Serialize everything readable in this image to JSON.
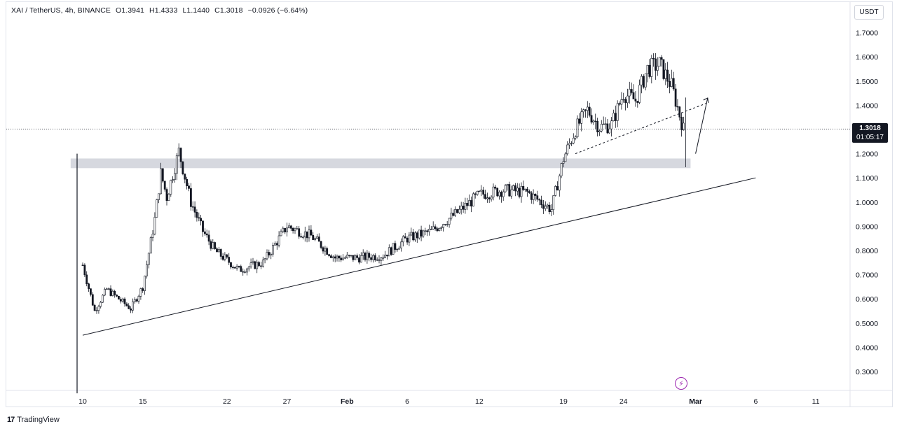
{
  "header": {
    "symbol": "XAI / TetherUS, 4h, BINANCE",
    "open": "O1.3941",
    "high": "H1.4333",
    "low": "L1.1440",
    "close": "C1.3018",
    "change": "−0.0926 (−6.64%)"
  },
  "currency_button": "USDT",
  "price_badge": {
    "price": "1.3018",
    "countdown": "01:05:17"
  },
  "footer": {
    "logo": "17",
    "brand": "TradingView"
  },
  "colors": {
    "candle": "#131722",
    "zone": "#d1d4dc",
    "text": "#131722",
    "badge_bg": "#131722",
    "flash": "#9c27b0"
  },
  "icons": {
    "flash": "lightning-icon"
  },
  "chart_data": {
    "type": "candlestick",
    "ylabel": "",
    "ylim": [
      0.2,
      1.8
    ],
    "y_ticks": [
      "1.7000",
      "1.6000",
      "1.5000",
      "1.4000",
      "1.3000",
      "1.2000",
      "1.1000",
      "1.0000",
      "0.9000",
      "0.8000",
      "0.7000",
      "0.6000",
      "0.5000",
      "0.4000",
      "0.3000"
    ],
    "x_ticks": [
      "10",
      "15",
      "22",
      "27",
      "Feb",
      "6",
      "12",
      "19",
      "24",
      "Mar",
      "6",
      "11"
    ],
    "last_price": 1.3018,
    "price_path_approx": [
      {
        "x": "Jan 10",
        "y": 0.74
      },
      {
        "x": "Jan 11",
        "y": 0.55
      },
      {
        "x": "Jan 12",
        "y": 0.64
      },
      {
        "x": "Jan 13",
        "y": 0.6
      },
      {
        "x": "Jan 14",
        "y": 0.56
      },
      {
        "x": "Jan 15",
        "y": 0.65
      },
      {
        "x": "Jan 16",
        "y": 0.93
      },
      {
        "x": "Jan 16",
        "y": 1.12
      },
      {
        "x": "Jan 17",
        "y": 1.02
      },
      {
        "x": "Jan 18",
        "y": 1.21
      },
      {
        "x": "Jan 19",
        "y": 1.0
      },
      {
        "x": "Jan 20",
        "y": 0.88
      },
      {
        "x": "Jan 21",
        "y": 0.8
      },
      {
        "x": "Jan 23",
        "y": 0.72
      },
      {
        "x": "Jan 25",
        "y": 0.75
      },
      {
        "x": "Jan 27",
        "y": 0.9
      },
      {
        "x": "Jan 29",
        "y": 0.86
      },
      {
        "x": "Jan 31",
        "y": 0.77
      },
      {
        "x": "Feb 2",
        "y": 0.77
      },
      {
        "x": "Feb 4",
        "y": 0.78
      },
      {
        "x": "Feb 6",
        "y": 0.85
      },
      {
        "x": "Feb 8",
        "y": 0.88
      },
      {
        "x": "Feb 10",
        "y": 0.95
      },
      {
        "x": "Feb 12",
        "y": 1.03
      },
      {
        "x": "Feb 14",
        "y": 1.05
      },
      {
        "x": "Feb 16",
        "y": 1.04
      },
      {
        "x": "Feb 18",
        "y": 0.97
      },
      {
        "x": "Feb 19",
        "y": 1.18
      },
      {
        "x": "Feb 20",
        "y": 1.3
      },
      {
        "x": "Feb 21",
        "y": 1.38
      },
      {
        "x": "Feb 22",
        "y": 1.31
      },
      {
        "x": "Feb 23",
        "y": 1.32
      },
      {
        "x": "Feb 24",
        "y": 1.45
      },
      {
        "x": "Feb 25",
        "y": 1.42
      },
      {
        "x": "Feb 26",
        "y": 1.55
      },
      {
        "x": "Feb 27",
        "y": 1.57
      },
      {
        "x": "Feb 28",
        "y": 1.48
      },
      {
        "x": "Feb 29",
        "y": 1.3
      }
    ],
    "annotations": {
      "support_zone": {
        "y_range": [
          1.14,
          1.18
        ],
        "x_range": [
          "Jan 9",
          "Feb 29"
        ]
      },
      "rising_trendline": {
        "from": {
          "x": "Jan 10",
          "y": 0.45
        },
        "to": {
          "x": "Mar 6",
          "y": 1.1
        }
      },
      "dashed_trendline": {
        "from": {
          "x": "Feb 20",
          "y": 1.2
        },
        "to": {
          "x": "Mar 2",
          "y": 1.41
        }
      },
      "arrow": {
        "from": {
          "x": "Mar 1",
          "y": 1.2
        },
        "to": {
          "x": "Mar 2",
          "y": 1.43
        }
      }
    }
  }
}
